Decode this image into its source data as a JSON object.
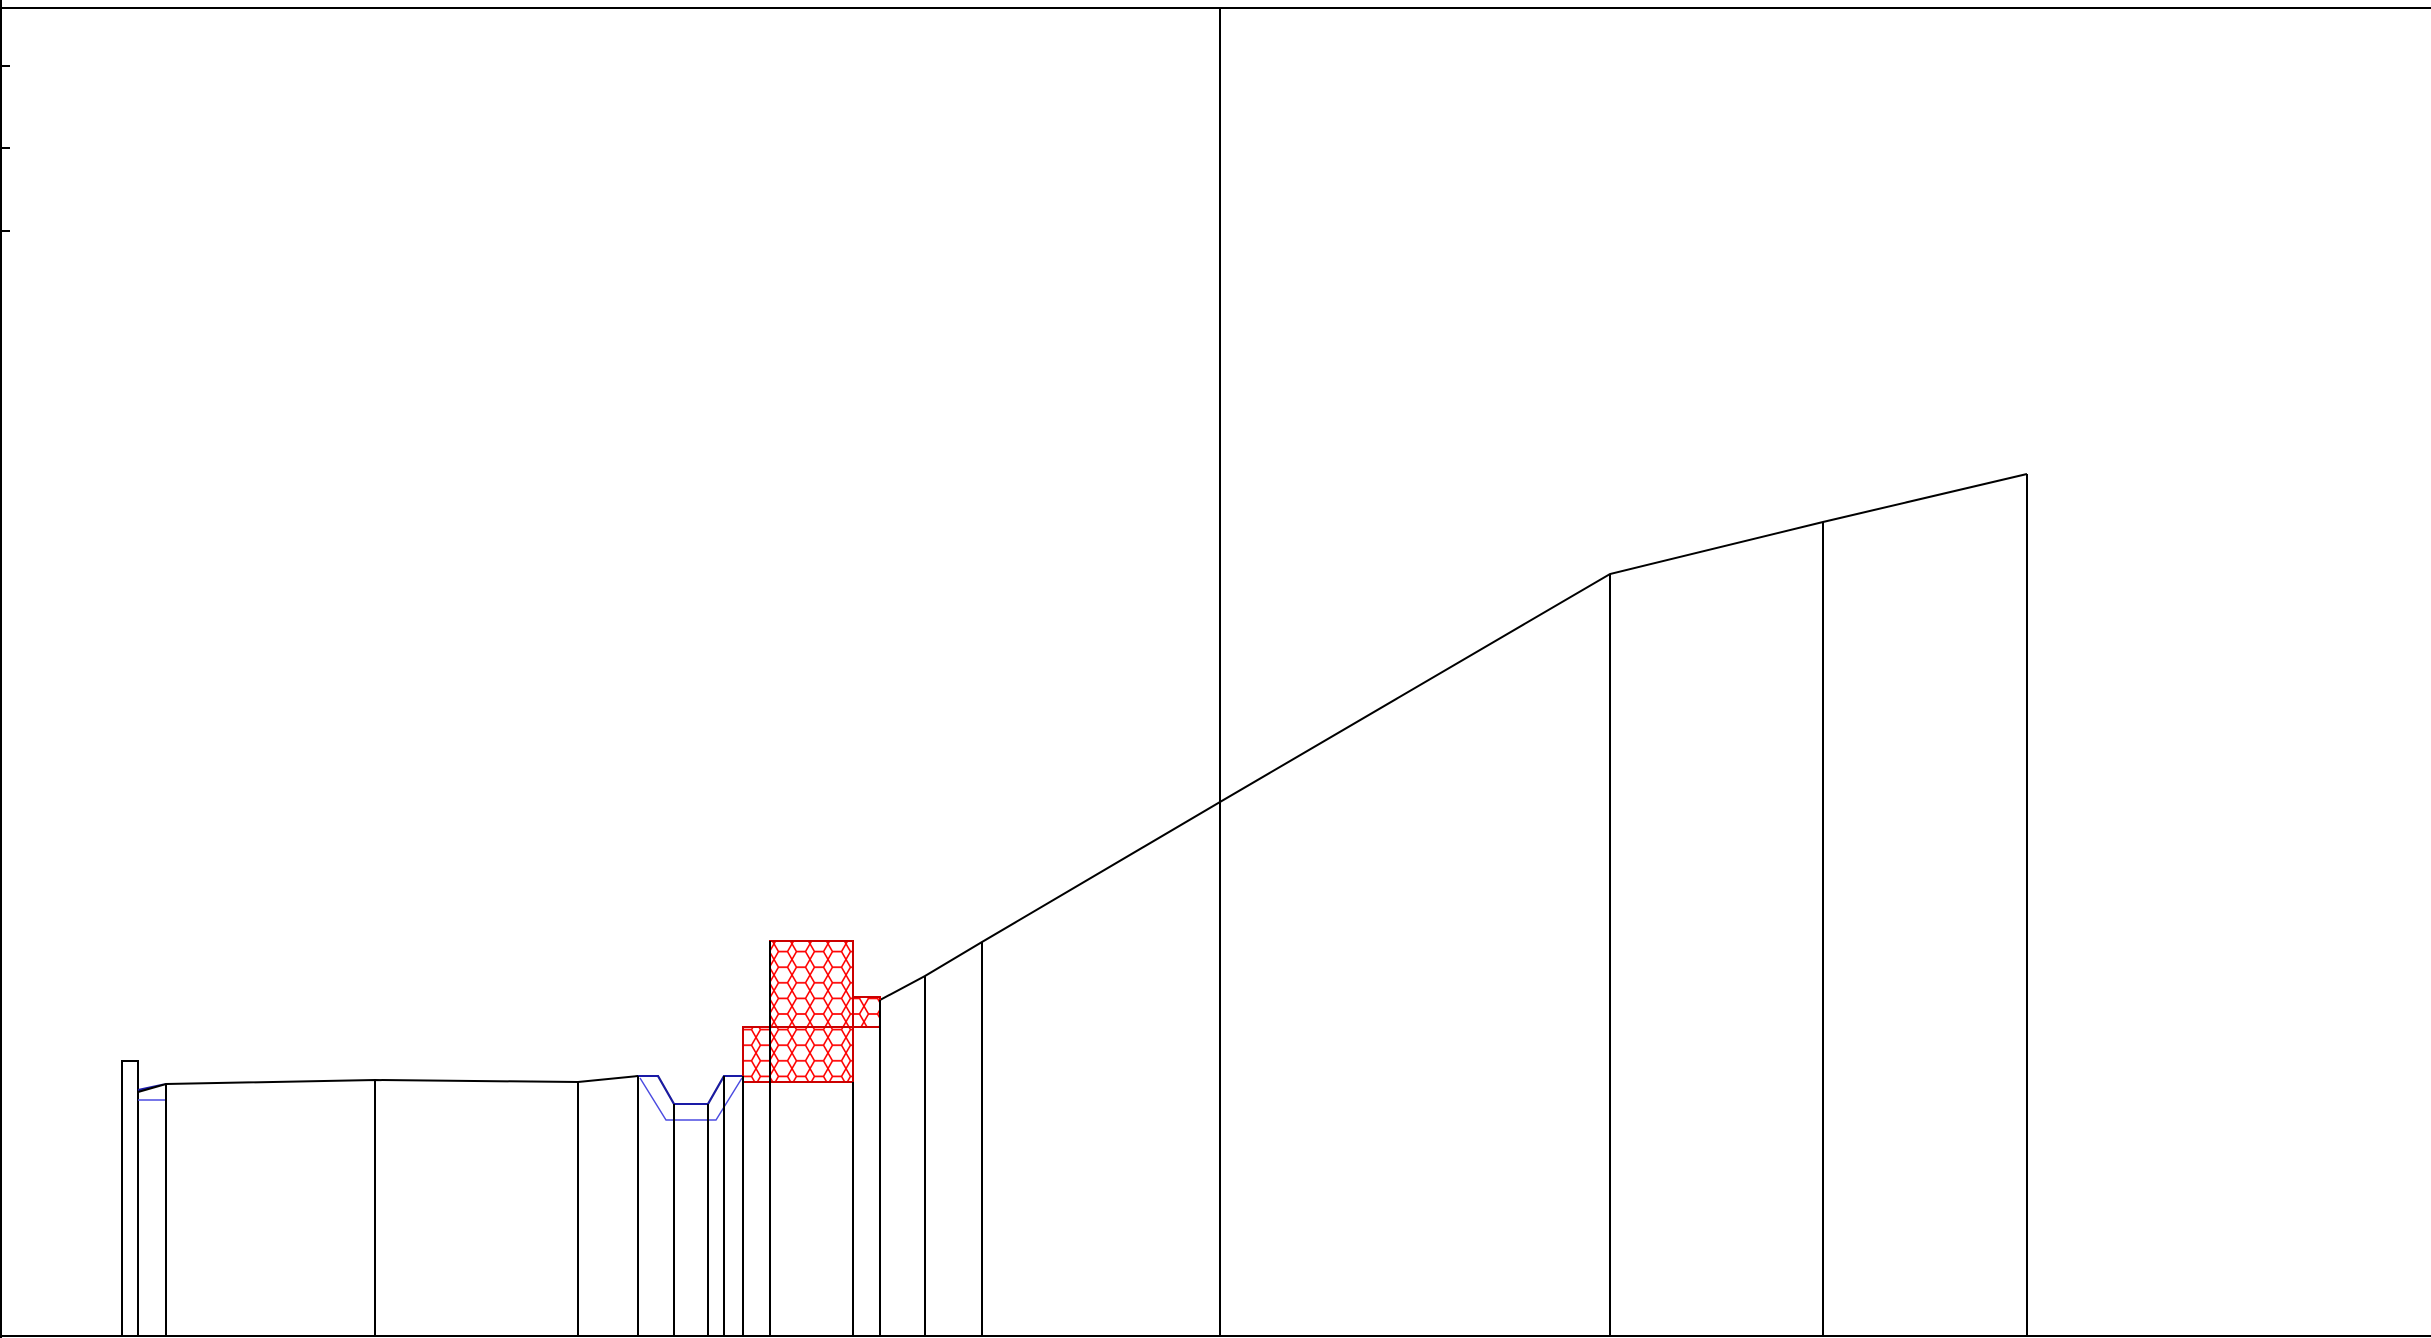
{
  "diagram": {
    "colors": {
      "line": "#000000",
      "annotation": "#1a1aa6",
      "hatch": "#ff0000",
      "background": "#ffffff"
    }
  }
}
